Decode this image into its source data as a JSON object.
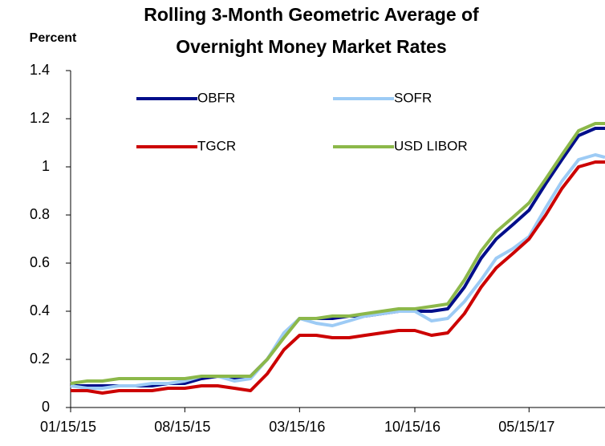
{
  "chart_data": {
    "type": "line",
    "title": [
      "Rolling 3-Month  Geometric Average of",
      "Overnight Money Market Rates"
    ],
    "y_label": "Percent",
    "x": [
      "2015-01-15",
      "2015-02-15",
      "2015-03-15",
      "2015-04-15",
      "2015-05-15",
      "2015-06-15",
      "2015-07-15",
      "2015-08-15",
      "2015-09-15",
      "2015-10-15",
      "2015-11-15",
      "2015-12-15",
      "2016-01-15",
      "2016-02-15",
      "2016-03-15",
      "2016-04-15",
      "2016-05-15",
      "2016-06-15",
      "2016-07-15",
      "2016-08-15",
      "2016-09-15",
      "2016-10-15",
      "2016-11-15",
      "2016-12-15",
      "2017-01-15",
      "2017-02-15",
      "2017-03-15",
      "2017-04-15",
      "2017-05-15",
      "2017-06-15",
      "2017-07-15",
      "2017-08-15",
      "2017-09-15",
      "2017-10-03"
    ],
    "series": [
      {
        "name": "OBFR",
        "color": "#000e8a",
        "values": [
          0.09,
          0.09,
          0.09,
          0.09,
          0.09,
          0.09,
          0.1,
          0.1,
          0.12,
          0.13,
          0.12,
          0.13,
          0.2,
          0.3,
          0.37,
          0.37,
          0.37,
          0.38,
          0.38,
          0.39,
          0.4,
          0.4,
          0.4,
          0.41,
          0.5,
          0.62,
          0.7,
          0.76,
          0.82,
          0.93,
          1.03,
          1.13,
          1.16,
          1.16
        ]
      },
      {
        "name": "SOFR",
        "color": "#9dcbf5",
        "values": [
          0.09,
          0.08,
          0.08,
          0.09,
          0.09,
          0.1,
          0.1,
          0.11,
          0.13,
          0.13,
          0.11,
          0.12,
          0.2,
          0.31,
          0.37,
          0.35,
          0.34,
          0.36,
          0.38,
          0.39,
          0.4,
          0.4,
          0.36,
          0.37,
          0.44,
          0.53,
          0.62,
          0.66,
          0.71,
          0.83,
          0.94,
          1.03,
          1.05,
          1.04
        ]
      },
      {
        "name": "TGCR",
        "color": "#cc0000",
        "values": [
          0.07,
          0.07,
          0.06,
          0.07,
          0.07,
          0.07,
          0.08,
          0.08,
          0.09,
          0.09,
          0.08,
          0.07,
          0.14,
          0.24,
          0.3,
          0.3,
          0.29,
          0.29,
          0.3,
          0.31,
          0.32,
          0.32,
          0.3,
          0.31,
          0.39,
          0.5,
          0.58,
          0.64,
          0.7,
          0.8,
          0.91,
          1.0,
          1.02,
          1.02
        ]
      },
      {
        "name": "USD LIBOR",
        "color": "#8cb84a",
        "values": [
          0.1,
          0.11,
          0.11,
          0.12,
          0.12,
          0.12,
          0.12,
          0.12,
          0.13,
          0.13,
          0.13,
          0.13,
          0.2,
          0.29,
          0.37,
          0.37,
          0.38,
          0.38,
          0.39,
          0.4,
          0.41,
          0.41,
          0.42,
          0.43,
          0.53,
          0.65,
          0.73,
          0.79,
          0.85,
          0.95,
          1.05,
          1.15,
          1.18,
          1.18
        ]
      }
    ],
    "xlim": [
      "2015-01-15",
      "2017-10-03"
    ],
    "xticks": [
      {
        "value": "2015-01-15",
        "label": "01/15/15"
      },
      {
        "value": "2015-08-15",
        "label": "08/15/15"
      },
      {
        "value": "2016-03-15",
        "label": "03/15/16"
      },
      {
        "value": "2016-10-15",
        "label": "10/15/16"
      },
      {
        "value": "2017-05-15",
        "label": "05/15/17"
      }
    ],
    "ylim": [
      0,
      1.4
    ],
    "yticks": [
      0,
      0.2,
      0.4,
      0.6,
      0.8,
      1,
      1.2,
      1.4
    ],
    "grid": false,
    "legend": "upper left"
  }
}
